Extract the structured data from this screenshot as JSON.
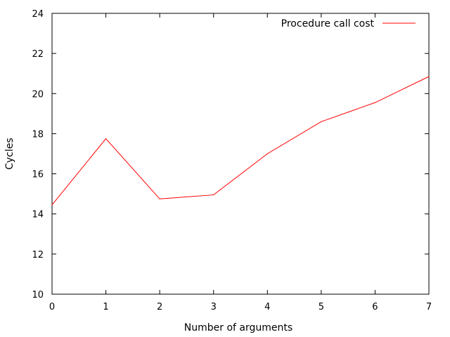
{
  "chart_data": {
    "type": "line",
    "xlabel": "Number of arguments",
    "ylabel": "Cycles",
    "xlim": [
      0,
      7
    ],
    "ylim": [
      10,
      24
    ],
    "x_ticks": [
      "0",
      "1",
      "2",
      "3",
      "4",
      "5",
      "6",
      "7"
    ],
    "y_ticks": [
      "10",
      "12",
      "14",
      "16",
      "18",
      "20",
      "22",
      "24"
    ],
    "grid": false,
    "legend_position": "top-right",
    "series": [
      {
        "name": "Procedure call cost",
        "color": "#ff0000",
        "x": [
          0,
          1,
          2,
          3,
          4,
          5,
          6,
          7
        ],
        "y": [
          14.45,
          17.75,
          14.75,
          14.95,
          17.0,
          18.6,
          19.55,
          20.85
        ]
      }
    ]
  }
}
